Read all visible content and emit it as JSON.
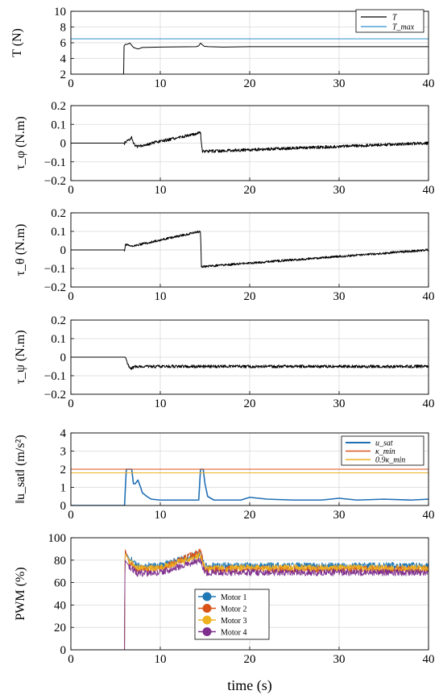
{
  "figure": {
    "xlabel": "time (s)"
  },
  "chart_data": [
    {
      "type": "line",
      "ylabel": "T (N)",
      "xlim": [
        0,
        40
      ],
      "ylim": [
        2,
        10
      ],
      "xticks": [
        "0",
        "10",
        "20",
        "30",
        "40"
      ],
      "yticks": [
        "2",
        "4",
        "6",
        "8",
        "10"
      ],
      "grid": true,
      "legend_position": "top-right",
      "series": [
        {
          "name": "T",
          "color": "#000000",
          "x": [
            0,
            5.9,
            5.95,
            6.1,
            6.3,
            6.6,
            7.0,
            7.5,
            8.0,
            10,
            14.0,
            14.3,
            14.5,
            14.9,
            15.4,
            17,
            20,
            25,
            30,
            40
          ],
          "y": [
            2,
            2,
            5.6,
            5.8,
            5.8,
            5.95,
            5.4,
            5.2,
            5.4,
            5.45,
            5.5,
            5.6,
            5.95,
            5.55,
            5.5,
            5.45,
            5.5,
            5.5,
            5.5,
            5.5
          ]
        },
        {
          "name": "T_max",
          "color": "#2f8fce",
          "x": [
            0,
            40
          ],
          "y": [
            6.5,
            6.5
          ]
        }
      ]
    },
    {
      "type": "line",
      "ylabel": "τ_φ (N.m)",
      "xlim": [
        0,
        40
      ],
      "ylim": [
        -0.2,
        0.2
      ],
      "xticks": [
        "0",
        "10",
        "20",
        "30",
        "40"
      ],
      "yticks": [
        "0.2",
        "0.1",
        "0",
        "−0.1",
        "−0.2"
      ],
      "grid": true,
      "series": [
        {
          "color": "#000000",
          "x": [
            0,
            6,
            6.8,
            7.2,
            14.5,
            14.7,
            40
          ],
          "y": [
            0,
            0,
            0.03,
            -0.02,
            0.055,
            -0.045,
            0
          ]
        }
      ]
    },
    {
      "type": "line",
      "ylabel": "τ_θ (N.m)",
      "xlim": [
        0,
        40
      ],
      "ylim": [
        -0.2,
        0.2
      ],
      "xticks": [
        "0",
        "10",
        "20",
        "30",
        "40"
      ],
      "yticks": [
        "0.2",
        "0.1",
        "0",
        "−0.1",
        "−0.2"
      ],
      "grid": true,
      "series": [
        {
          "color": "#000000",
          "x": [
            0,
            6,
            6.1,
            6.8,
            14.5,
            14.6,
            40
          ],
          "y": [
            0,
            0,
            0.03,
            0.02,
            0.1,
            -0.09,
            0
          ]
        }
      ]
    },
    {
      "type": "line",
      "ylabel": "τ_ψ (N.m)",
      "xlim": [
        0,
        40
      ],
      "ylim": [
        -0.2,
        0.2
      ],
      "xticks": [
        "0",
        "10",
        "20",
        "30",
        "40"
      ],
      "yticks": [
        "0.2",
        "0.1",
        "0",
        "−0.1",
        "−0.2"
      ],
      "grid": true,
      "series": [
        {
          "color": "#000000",
          "x": [
            0,
            6.1,
            6.6,
            7.2,
            40
          ],
          "y": [
            0,
            0,
            -0.065,
            -0.05,
            -0.05
          ]
        }
      ]
    },
    {
      "type": "line",
      "ylabel": "‖u_sat‖ (m/s²)",
      "xlim": [
        0,
        40
      ],
      "ylim": [
        0,
        4
      ],
      "xticks": [
        "0",
        "10",
        "20",
        "30",
        "40"
      ],
      "yticks": [
        "4",
        "3",
        "2",
        "1",
        "0"
      ],
      "grid": true,
      "legend_position": "top-right",
      "series": [
        {
          "name": "u_sat",
          "color": "#1f6fb5",
          "x": [
            0,
            6.0,
            6.2,
            6.5,
            6.8,
            7.0,
            7.2,
            7.5,
            7.8,
            8.0,
            8.5,
            9,
            10,
            12,
            14.3,
            14.5,
            14.8,
            15.0,
            15.3,
            16,
            17,
            18,
            19,
            20,
            22,
            25,
            28,
            30,
            32,
            35,
            38,
            40
          ],
          "y": [
            0,
            0,
            2.0,
            2.0,
            2.0,
            1.2,
            1.2,
            1.4,
            1.0,
            0.7,
            0.5,
            0.35,
            0.3,
            0.3,
            0.3,
            2.0,
            2.0,
            1.2,
            0.5,
            0.3,
            0.3,
            0.3,
            0.3,
            0.45,
            0.35,
            0.3,
            0.3,
            0.4,
            0.3,
            0.35,
            0.3,
            0.35
          ]
        },
        {
          "name": "κ_min",
          "color": "#d9531e",
          "x": [
            0,
            40
          ],
          "y": [
            2.0,
            2.0
          ]
        },
        {
          "name": "0.9κ_min",
          "color": "#edb120",
          "x": [
            0,
            40
          ],
          "y": [
            1.8,
            1.8
          ]
        }
      ]
    },
    {
      "type": "line",
      "ylabel": "PWM (%)",
      "xlim": [
        0,
        40
      ],
      "ylim": [
        0,
        100
      ],
      "xticks": [
        "0",
        "10",
        "20",
        "30",
        "40"
      ],
      "yticks": [
        "100",
        "80",
        "60",
        "40",
        "20",
        "0"
      ],
      "grid": true,
      "legend_position": "bottom-center",
      "series": [
        {
          "name": "Motor 1",
          "color": "#1f77b4",
          "x": [
            0,
            6,
            6.05,
            6.5,
            7.5,
            10,
            14.5,
            15,
            40
          ],
          "y": [
            0,
            0,
            88,
            82,
            75,
            75,
            86,
            75,
            75
          ]
        },
        {
          "name": "Motor 2",
          "color": "#d95319",
          "x": [
            0,
            6,
            6.05,
            6.5,
            7.5,
            10,
            14.5,
            15,
            40
          ],
          "y": [
            0,
            0,
            90,
            78,
            72,
            72,
            88,
            72,
            72
          ]
        },
        {
          "name": "Motor 3",
          "color": "#edb120",
          "x": [
            0,
            6,
            6.05,
            6.5,
            7.5,
            10,
            14.5,
            15,
            40
          ],
          "y": [
            0,
            0,
            86,
            80,
            73,
            73,
            84,
            73,
            73
          ]
        },
        {
          "name": "Motor 4",
          "color": "#7e2f8e",
          "x": [
            0,
            6,
            6.05,
            6.5,
            7.5,
            10,
            14.5,
            15,
            40
          ],
          "y": [
            0,
            0,
            80,
            75,
            68,
            69,
            80,
            69,
            69
          ]
        }
      ]
    }
  ]
}
